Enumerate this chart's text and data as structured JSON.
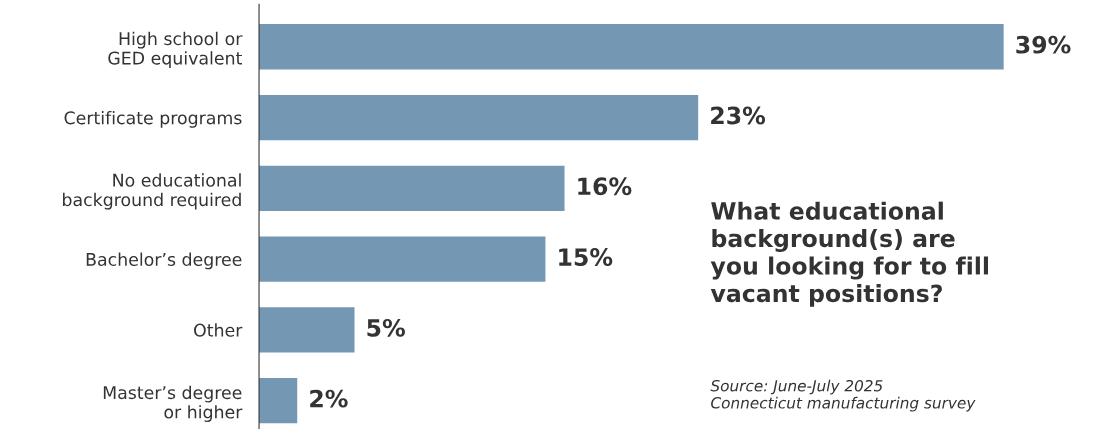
{
  "chart_data": {
    "type": "bar",
    "orientation": "horizontal",
    "title": "What educational\nbackground(s) are\nyou looking for to fill\nvacant positions?",
    "categories": [
      "High school or\nGED equivalent",
      "Certificate programs",
      "No educational\nbackground required",
      "Bachelor’s degree",
      "Other",
      "Master’s degree\nor higher"
    ],
    "values": [
      39,
      23,
      16,
      15,
      5,
      2
    ],
    "value_labels": [
      "39%",
      "23%",
      "16%",
      "15%",
      "5%",
      "2%"
    ],
    "color": "#7497b3",
    "tick_labels": "y",
    "grid": false,
    "legend": false,
    "annotations": [
      "Source: June-July 2025\nConnecticut manufacturing survey"
    ]
  }
}
